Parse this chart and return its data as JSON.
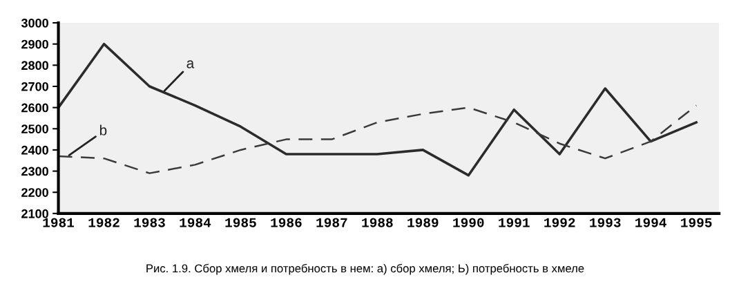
{
  "chart_data": {
    "type": "line",
    "categories": [
      "1981",
      "1982",
      "1983",
      "1984",
      "1985",
      "1986",
      "1987",
      "1988",
      "1989",
      "1990",
      "1991",
      "1992",
      "1993",
      "1994",
      "1995"
    ],
    "series": [
      {
        "name": "a",
        "color": "#2b2b2b",
        "line_style": "solid",
        "values": [
          2600,
          2900,
          2700,
          2610,
          2510,
          2380,
          2380,
          2380,
          2400,
          2280,
          2590,
          2380,
          2690,
          2440,
          2530
        ]
      },
      {
        "name": "b",
        "color": "#3a3a3a",
        "line_style": "dashed",
        "values": [
          2370,
          2360,
          2290,
          2330,
          2400,
          2450,
          2450,
          2530,
          2570,
          2600,
          2530,
          2430,
          2360,
          2440,
          2610
        ]
      }
    ],
    "ylim": [
      2100,
      3000
    ],
    "yticks": [
      2100,
      2200,
      2300,
      2400,
      2500,
      2600,
      2700,
      2800,
      2900,
      3000
    ],
    "grid": false,
    "legend": false,
    "marker": "none",
    "annotations": [
      "Рис. 1.9. Сбор хмеля и потребность в нем: а) сбор хмеля; Ь) потребность в хмеле"
    ]
  }
}
